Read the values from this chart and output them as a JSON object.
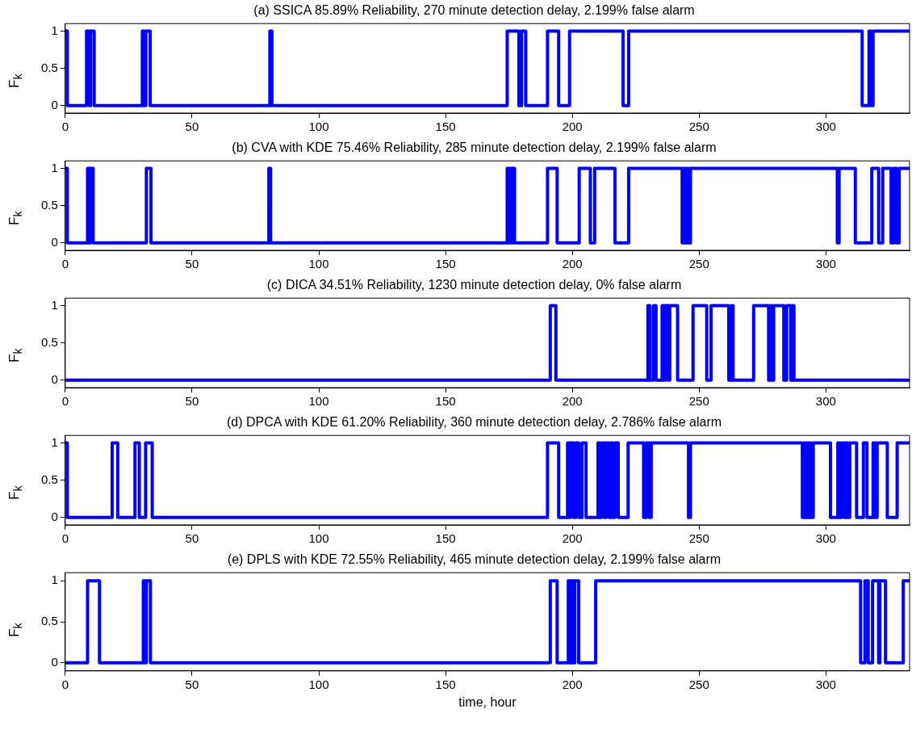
{
  "chart_data": [
    {
      "type": "step",
      "title": "(a) SSICA 85.89% Reliability, 270 minute detection delay, 2.199% false alarm",
      "ylabel": "F$_{k}$",
      "color": "#0000ff",
      "xlim": [
        0,
        333
      ],
      "xticks": [
        0,
        50,
        100,
        150,
        200,
        250,
        300
      ],
      "ylim": [
        -0.1,
        1.1
      ],
      "yticks": [
        0,
        0.5,
        1
      ],
      "x": [
        0,
        0.8,
        8.4,
        9.5,
        10,
        11.4,
        30.4,
        31.2,
        31.8,
        33.5,
        80.7,
        81.5,
        174.3,
        178.9,
        180,
        181.6,
        190.2,
        194.6,
        198.9,
        220,
        222.2,
        314.3,
        317,
        317.7,
        318.6,
        333
      ],
      "values": [
        1,
        0,
        1,
        0,
        1,
        0,
        1,
        0,
        1,
        0,
        1,
        0,
        1,
        0,
        1,
        0,
        1,
        0,
        1,
        0,
        1,
        0,
        1,
        0,
        1,
        1
      ]
    },
    {
      "type": "step",
      "title": "(b) CVA with KDE 75.46% Reliability, 285 minute detection delay, 2.199% false alarm",
      "ylabel": "F$_{k}$",
      "color": "#0000ff",
      "xlim": [
        0,
        333
      ],
      "xticks": [
        0,
        50,
        100,
        150,
        200,
        250,
        300
      ],
      "ylim": [
        -0.1,
        1.1
      ],
      "yticks": [
        0,
        0.5,
        1
      ],
      "x": [
        0,
        0.8,
        8.8,
        9.5,
        10,
        11,
        32,
        33.8,
        80.3,
        81,
        174.3,
        175,
        175.5,
        176,
        176.5,
        177.2,
        190.2,
        194,
        202.7,
        207.1,
        208.8,
        216.8,
        222.2,
        243.3,
        244,
        244.6,
        245.3,
        245.8,
        246.6,
        304.5,
        305.2,
        311.6,
        318.1,
        320.8,
        322.4,
        325.7,
        326.7,
        327.8,
        328.9,
        333
      ],
      "values": [
        1,
        0,
        1,
        0,
        1,
        0,
        1,
        0,
        1,
        0,
        1,
        0,
        1,
        0,
        1,
        0,
        1,
        0,
        1,
        0,
        1,
        0,
        1,
        0,
        1,
        0,
        1,
        0,
        1,
        0,
        1,
        0,
        1,
        0,
        1,
        0,
        1,
        0,
        1,
        1
      ]
    },
    {
      "type": "step",
      "title": "(c) DICA 34.51% Reliability, 1230 minute detection delay, 0% false alarm",
      "ylabel": "F$_{k}$",
      "color": "#0000ff",
      "xlim": [
        0,
        333
      ],
      "xticks": [
        0,
        50,
        100,
        150,
        200,
        250,
        300
      ],
      "ylim": [
        -0.1,
        1.1
      ],
      "yticks": [
        0,
        0.5,
        1
      ],
      "x": [
        0,
        191.3,
        193.5,
        229.8,
        230.6,
        232,
        233,
        235.4,
        236.3,
        236.8,
        237.9,
        238.4,
        241.5,
        247.6,
        253,
        254.7,
        261.7,
        262.8,
        263.4,
        271.5,
        277.4,
        278,
        278.7,
        279.4,
        283.4,
        284.5,
        286.1,
        286.7,
        287.4,
        333
      ],
      "values": [
        0,
        1,
        0,
        1,
        0,
        1,
        0,
        1,
        0,
        1,
        0,
        1,
        0,
        1,
        0,
        1,
        0,
        1,
        0,
        1,
        0,
        1,
        0,
        1,
        0,
        1,
        0,
        1,
        0,
        0
      ]
    },
    {
      "type": "step",
      "title": "(d) DPCA with KDE 61.20% Reliability, 360 minute detection delay, 2.786% false alarm",
      "ylabel": "F$_{k}$",
      "color": "#0000ff",
      "xlim": [
        0,
        333
      ],
      "xticks": [
        0,
        50,
        100,
        150,
        200,
        250,
        300
      ],
      "ylim": [
        -0.1,
        1.1
      ],
      "yticks": [
        0,
        0.5,
        1
      ],
      "x": [
        0,
        0.8,
        18.5,
        20.7,
        27.5,
        29.2,
        31.7,
        34.3,
        190.2,
        194.6,
        198.1,
        198.9,
        199.4,
        200.5,
        201.4,
        202.5,
        203.8,
        205.4,
        210.1,
        210.8,
        211.6,
        212.7,
        213.3,
        214.4,
        215.1,
        215.9,
        216.8,
        218.1,
        222,
        228.1,
        229.2,
        230.3,
        231.1,
        245.8,
        246.6,
        290.7,
        291.5,
        292.4,
        293.2,
        293.9,
        295,
        301.8,
        304.7,
        305.4,
        306.2,
        307.2,
        307.8,
        308.6,
        309.4,
        312.1,
        314.8,
        316.2,
        318.6,
        319.5,
        320.2,
        324.2,
        328.1,
        333
      ],
      "values": [
        1,
        0,
        1,
        0,
        1,
        0,
        1,
        0,
        1,
        0,
        1,
        0,
        1,
        0,
        1,
        0,
        1,
        0,
        1,
        0,
        1,
        0,
        1,
        0,
        1,
        0,
        1,
        0,
        1,
        0,
        1,
        0,
        1,
        0,
        1,
        0,
        1,
        0,
        1,
        0,
        1,
        0,
        1,
        0,
        1,
        0,
        1,
        0,
        1,
        0,
        1,
        0,
        1,
        0,
        1,
        0,
        1,
        1
      ]
    },
    {
      "type": "step",
      "title": "(e) DPLS with KDE 72.55% Reliability, 465 minute detection delay, 2.199% false alarm",
      "ylabel": "F$_{k}$",
      "xlabel": "time, hour",
      "color": "#0000ff",
      "xlim": [
        0,
        333
      ],
      "xticks": [
        0,
        50,
        100,
        150,
        200,
        250,
        300
      ],
      "ylim": [
        -0.1,
        1.1
      ],
      "yticks": [
        0,
        0.5,
        1
      ],
      "x": [
        0,
        8.8,
        13.5,
        30.8,
        31.5,
        32,
        33.6,
        191.3,
        194,
        198.4,
        199.2,
        199.7,
        200.5,
        201,
        202.5,
        209.2,
        313.7,
        315.4,
        316.7,
        318.4,
        320.8,
        321.3,
        323.5,
        330.5,
        333
      ],
      "values": [
        0,
        1,
        0,
        1,
        0,
        1,
        0,
        1,
        0,
        1,
        0,
        1,
        0,
        1,
        0,
        1,
        0,
        1,
        0,
        1,
        0,
        1,
        0,
        1,
        1
      ]
    }
  ]
}
